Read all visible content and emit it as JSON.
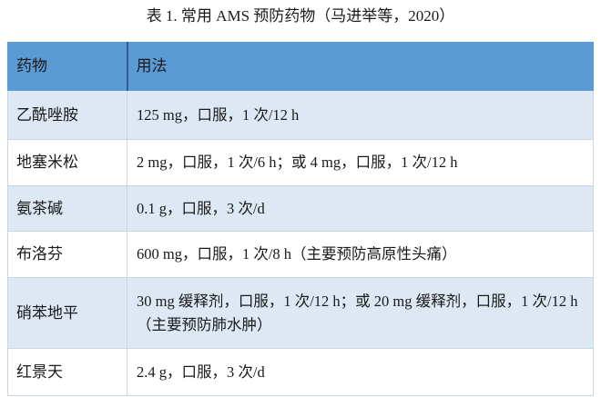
{
  "caption": "表 1. 常用 AMS 预防药物（马进举等，2020）",
  "table": {
    "headers": [
      "药物",
      "用法"
    ],
    "rows": [
      {
        "drug": "乙酰唑胺",
        "usage": "125 mg，口服，1 次/12 h"
      },
      {
        "drug": "地塞米松",
        "usage": "2 mg，口服，1 次/6 h；或 4 mg，口服，1 次/12 h"
      },
      {
        "drug": "氨茶碱",
        "usage": "0.1 g，口服，3 次/d"
      },
      {
        "drug": "布洛芬",
        "usage": "600 mg，口服，1 次/8 h（主要预防高原性头痛）"
      },
      {
        "drug": "硝苯地平",
        "usage": "30 mg 缓释剂，口服，1 次/12 h；或 20 mg 缓释剂，口服，1 次/12 h（主要预防肺水肿）"
      },
      {
        "drug": "红景天",
        "usage": "2.4 g，口服，3 次/d"
      }
    ]
  },
  "colors": {
    "header": "#5b9bd5",
    "band": "#dde8f4"
  }
}
